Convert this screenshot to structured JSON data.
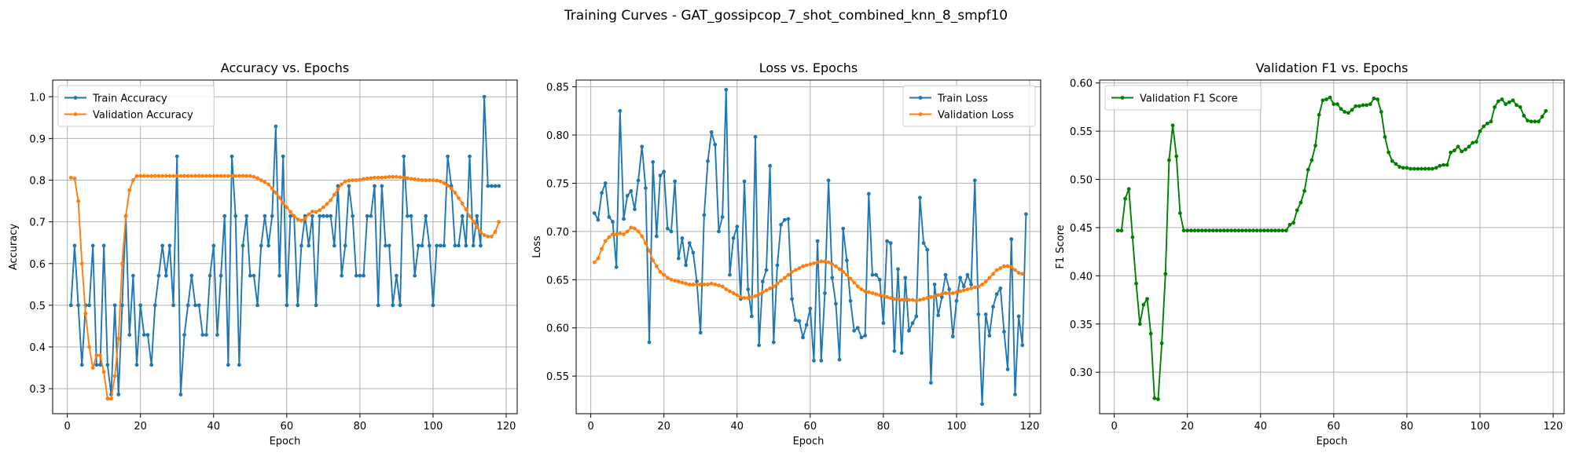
{
  "figure": {
    "suptitle": "Training Curves - GAT_gossipcop_7_shot_combined_knn_8_smpf10"
  },
  "colors": {
    "train": "#1f77b4",
    "validation": "#ff7f0e",
    "f1": "#008000",
    "grid": "#b0b0b0"
  },
  "chart_data": [
    {
      "type": "line",
      "title": "Accuracy vs. Epochs",
      "xlabel": "Epoch",
      "ylabel": "Accuracy",
      "xlim": [
        -4,
        123
      ],
      "ylim": [
        0.24,
        1.04
      ],
      "xticks": [
        0,
        20,
        40,
        60,
        80,
        100,
        120
      ],
      "yticks": [
        0.3,
        0.4,
        0.5,
        0.6,
        0.7,
        0.8,
        0.9,
        1.0
      ],
      "ytick_labels": [
        "0.3",
        "0.4",
        "0.5",
        "0.6",
        "0.7",
        "0.8",
        "0.9",
        "1.0"
      ],
      "grid": true,
      "legend_position": "upper left",
      "series": [
        {
          "name": "Train Accuracy",
          "color": "#1f77b4",
          "x_start": 1,
          "values": [
            0.5,
            0.643,
            0.5,
            0.357,
            0.5,
            0.5,
            0.643,
            0.357,
            0.357,
            0.643,
            0.357,
            0.286,
            0.5,
            0.286,
            0.5,
            0.714,
            0.429,
            0.571,
            0.357,
            0.5,
            0.429,
            0.429,
            0.357,
            0.5,
            0.571,
            0.643,
            0.571,
            0.643,
            0.5,
            0.857,
            0.286,
            0.429,
            0.5,
            0.571,
            0.5,
            0.5,
            0.429,
            0.429,
            0.571,
            0.643,
            0.429,
            0.571,
            0.714,
            0.357,
            0.857,
            0.714,
            0.357,
            0.643,
            0.714,
            0.571,
            0.571,
            0.5,
            0.643,
            0.714,
            0.643,
            0.714,
            0.929,
            0.571,
            0.857,
            0.5,
            0.714,
            0.714,
            0.5,
            0.643,
            0.714,
            0.643,
            0.714,
            0.5,
            0.714,
            0.714,
            0.714,
            0.714,
            0.643,
            0.786,
            0.571,
            0.643,
            0.786,
            0.714,
            0.571,
            0.571,
            0.571,
            0.714,
            0.714,
            0.786,
            0.5,
            0.786,
            0.643,
            0.643,
            0.5,
            0.571,
            0.5,
            0.857,
            0.714,
            0.714,
            0.571,
            0.643,
            0.643,
            0.714,
            0.643,
            0.5,
            0.643,
            0.643,
            0.643,
            0.857,
            0.786,
            0.643,
            0.643,
            0.714,
            0.643,
            0.857,
            0.643,
            0.714,
            0.643,
            1.0,
            0.786,
            0.786,
            0.786,
            0.786
          ]
        },
        {
          "name": "Validation Accuracy",
          "color": "#ff7f0e",
          "x_start": 1,
          "values": [
            0.806,
            0.804,
            0.75,
            0.6,
            0.48,
            0.4,
            0.35,
            0.38,
            0.38,
            0.34,
            0.276,
            0.276,
            0.33,
            0.42,
            0.6,
            0.714,
            0.776,
            0.8,
            0.81,
            0.81,
            0.81,
            0.81,
            0.81,
            0.81,
            0.81,
            0.81,
            0.81,
            0.81,
            0.81,
            0.81,
            0.81,
            0.81,
            0.81,
            0.81,
            0.81,
            0.81,
            0.81,
            0.81,
            0.81,
            0.81,
            0.81,
            0.81,
            0.81,
            0.81,
            0.81,
            0.81,
            0.81,
            0.81,
            0.81,
            0.81,
            0.808,
            0.805,
            0.8,
            0.795,
            0.79,
            0.78,
            0.77,
            0.758,
            0.745,
            0.735,
            0.724,
            0.714,
            0.706,
            0.703,
            0.708,
            0.718,
            0.725,
            0.724,
            0.728,
            0.735,
            0.743,
            0.752,
            0.765,
            0.778,
            0.79,
            0.797,
            0.799,
            0.8,
            0.8,
            0.801,
            0.803,
            0.804,
            0.805,
            0.806,
            0.806,
            0.806,
            0.807,
            0.808,
            0.808,
            0.808,
            0.807,
            0.806,
            0.805,
            0.803,
            0.802,
            0.801,
            0.8,
            0.8,
            0.8,
            0.8,
            0.799,
            0.797,
            0.793,
            0.787,
            0.78,
            0.77,
            0.757,
            0.744,
            0.73,
            0.714,
            0.7,
            0.687,
            0.676,
            0.668,
            0.665,
            0.665,
            0.676,
            0.7
          ]
        }
      ]
    },
    {
      "type": "line",
      "title": "Loss vs. Epochs",
      "xlabel": "Epoch",
      "ylabel": "Loss",
      "xlim": [
        -4,
        123
      ],
      "ylim": [
        0.511,
        0.857
      ],
      "xticks": [
        0,
        20,
        40,
        60,
        80,
        100,
        120
      ],
      "yticks": [
        0.55,
        0.6,
        0.65,
        0.7,
        0.75,
        0.8,
        0.85
      ],
      "ytick_labels": [
        "0.55",
        "0.60",
        "0.65",
        "0.70",
        "0.75",
        "0.80",
        "0.85"
      ],
      "grid": true,
      "legend_position": "upper right",
      "series": [
        {
          "name": "Train Loss",
          "color": "#1f77b4",
          "x_start": 1,
          "values": [
            0.719,
            0.712,
            0.74,
            0.75,
            0.715,
            0.71,
            0.663,
            0.825,
            0.713,
            0.737,
            0.742,
            0.723,
            0.753,
            0.788,
            0.745,
            0.585,
            0.772,
            0.695,
            0.758,
            0.762,
            0.703,
            0.7,
            0.752,
            0.672,
            0.693,
            0.665,
            0.688,
            0.678,
            0.648,
            0.595,
            0.717,
            0.773,
            0.803,
            0.79,
            0.7,
            0.715,
            0.847,
            0.655,
            0.693,
            0.705,
            0.63,
            0.752,
            0.64,
            0.612,
            0.798,
            0.582,
            0.648,
            0.66,
            0.768,
            0.585,
            0.665,
            0.707,
            0.712,
            0.713,
            0.63,
            0.608,
            0.607,
            0.59,
            0.603,
            0.62,
            0.566,
            0.69,
            0.566,
            0.636,
            0.753,
            0.652,
            0.625,
            0.567,
            0.703,
            0.67,
            0.628,
            0.597,
            0.6,
            0.59,
            0.592,
            0.739,
            0.655,
            0.655,
            0.65,
            0.605,
            0.69,
            0.688,
            0.576,
            0.661,
            0.574,
            0.652,
            0.597,
            0.605,
            0.612,
            0.735,
            0.688,
            0.681,
            0.543,
            0.645,
            0.613,
            0.632,
            0.655,
            0.64,
            0.591,
            0.628,
            0.652,
            0.643,
            0.655,
            0.645,
            0.753,
            0.614,
            0.521,
            0.614,
            0.592,
            0.622,
            0.635,
            0.641,
            0.596,
            0.557,
            0.692,
            0.531,
            0.612,
            0.582,
            0.718
          ]
        },
        {
          "name": "Validation Loss",
          "color": "#ff7f0e",
          "x_start": 1,
          "values": [
            0.668,
            0.672,
            0.682,
            0.69,
            0.694,
            0.697,
            0.697,
            0.698,
            0.697,
            0.7,
            0.704,
            0.703,
            0.7,
            0.695,
            0.688,
            0.68,
            0.67,
            0.664,
            0.658,
            0.655,
            0.652,
            0.65,
            0.649,
            0.648,
            0.647,
            0.646,
            0.645,
            0.645,
            0.645,
            0.645,
            0.645,
            0.645,
            0.646,
            0.645,
            0.644,
            0.643,
            0.64,
            0.638,
            0.636,
            0.634,
            0.632,
            0.631,
            0.631,
            0.632,
            0.633,
            0.635,
            0.637,
            0.639,
            0.641,
            0.643,
            0.646,
            0.649,
            0.652,
            0.655,
            0.658,
            0.66,
            0.662,
            0.664,
            0.665,
            0.666,
            0.667,
            0.668,
            0.669,
            0.669,
            0.668,
            0.666,
            0.664,
            0.661,
            0.658,
            0.655,
            0.651,
            0.647,
            0.643,
            0.64,
            0.638,
            0.637,
            0.636,
            0.635,
            0.634,
            0.633,
            0.632,
            0.631,
            0.63,
            0.63,
            0.629,
            0.629,
            0.629,
            0.629,
            0.628,
            0.629,
            0.63,
            0.631,
            0.632,
            0.633,
            0.634,
            0.635,
            0.636,
            0.636,
            0.636,
            0.637,
            0.638,
            0.639,
            0.64,
            0.641,
            0.642,
            0.643,
            0.645,
            0.648,
            0.652,
            0.656,
            0.66,
            0.662,
            0.664,
            0.664,
            0.663,
            0.66,
            0.657,
            0.656
          ]
        }
      ]
    },
    {
      "type": "line",
      "title": "Validation F1 vs. Epochs",
      "xlabel": "Epoch",
      "ylabel": "F1 Score",
      "xlim": [
        -4,
        123
      ],
      "ylim": [
        0.257,
        0.603
      ],
      "xticks": [
        0,
        20,
        40,
        60,
        80,
        100,
        120
      ],
      "yticks": [
        0.3,
        0.35,
        0.4,
        0.45,
        0.5,
        0.55,
        0.6
      ],
      "ytick_labels": [
        "0.30",
        "0.35",
        "0.40",
        "0.45",
        "0.50",
        "0.55",
        "0.60"
      ],
      "grid": true,
      "legend_position": "upper left",
      "series": [
        {
          "name": "Validation F1 Score",
          "color": "#008000",
          "x_start": 1,
          "values": [
            0.447,
            0.447,
            0.48,
            0.49,
            0.44,
            0.392,
            0.35,
            0.37,
            0.376,
            0.34,
            0.273,
            0.272,
            0.33,
            0.402,
            0.52,
            0.556,
            0.524,
            0.465,
            0.447,
            0.447,
            0.447,
            0.447,
            0.447,
            0.447,
            0.447,
            0.447,
            0.447,
            0.447,
            0.447,
            0.447,
            0.447,
            0.447,
            0.447,
            0.447,
            0.447,
            0.447,
            0.447,
            0.447,
            0.447,
            0.447,
            0.447,
            0.447,
            0.447,
            0.447,
            0.447,
            0.447,
            0.447,
            0.453,
            0.455,
            0.468,
            0.476,
            0.488,
            0.51,
            0.52,
            0.535,
            0.567,
            0.582,
            0.583,
            0.585,
            0.578,
            0.578,
            0.573,
            0.57,
            0.569,
            0.572,
            0.576,
            0.576,
            0.577,
            0.577,
            0.578,
            0.584,
            0.583,
            0.57,
            0.544,
            0.528,
            0.519,
            0.516,
            0.513,
            0.512,
            0.512,
            0.511,
            0.511,
            0.511,
            0.511,
            0.511,
            0.511,
            0.511,
            0.512,
            0.514,
            0.515,
            0.515,
            0.528,
            0.53,
            0.534,
            0.529,
            0.531,
            0.534,
            0.538,
            0.539,
            0.55,
            0.555,
            0.558,
            0.56,
            0.575,
            0.581,
            0.583,
            0.578,
            0.58,
            0.582,
            0.577,
            0.575,
            0.566,
            0.561,
            0.56,
            0.56,
            0.56,
            0.565,
            0.571
          ]
        }
      ]
    }
  ]
}
